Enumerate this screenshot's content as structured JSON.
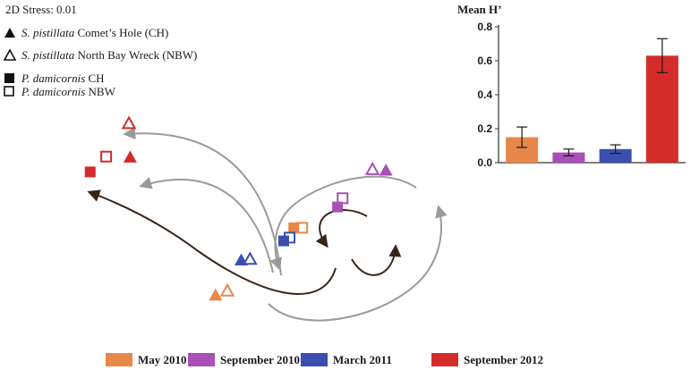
{
  "stress_label": "2D Stress: 0.01",
  "symbol_key": [
    {
      "marker": "triangle-filled",
      "species": "S. pistillata",
      "site": "Comet’s Hole (CH)"
    },
    {
      "marker": "triangle-open",
      "species": "S. pistillata",
      "site": "North Bay Wreck (NBW)"
    },
    {
      "marker": "square-filled",
      "species": "P. damicornis",
      "site": "CH"
    },
    {
      "marker": "square-open",
      "species": "P. damicornis",
      "site": "NBW"
    }
  ],
  "chart_data": [
    {
      "type": "scatter",
      "description_of_markers": "nMDS ordination points grouped by sampling date",
      "xlim": [
        0,
        100
      ],
      "ylim": [
        0,
        100
      ],
      "points": [
        {
          "x": 20.0,
          "y": 94.5,
          "marker": "triangle-open",
          "date": "September 2012"
        },
        {
          "x": 14.6,
          "y": 79.5,
          "marker": "square-open",
          "date": "September 2012"
        },
        {
          "x": 20.3,
          "y": 79.0,
          "marker": "triangle-filled",
          "date": "September 2012"
        },
        {
          "x": 10.8,
          "y": 72.5,
          "marker": "square-filled",
          "date": "September 2012"
        },
        {
          "x": 77.9,
          "y": 73.5,
          "marker": "triangle-open",
          "date": "September 2010"
        },
        {
          "x": 81.1,
          "y": 73.0,
          "marker": "triangle-filled",
          "date": "September 2010"
        },
        {
          "x": 70.8,
          "y": 60.5,
          "marker": "square-open",
          "date": "September 2010"
        },
        {
          "x": 69.6,
          "y": 56.5,
          "marker": "square-filled",
          "date": "September 2010"
        },
        {
          "x": 61.2,
          "y": 47.0,
          "marker": "square-open",
          "date": "May 2010"
        },
        {
          "x": 59.2,
          "y": 47.0,
          "marker": "square-filled",
          "date": "May 2010"
        },
        {
          "x": 58.2,
          "y": 42.5,
          "marker": "square-open",
          "date": "March 2011"
        },
        {
          "x": 56.8,
          "y": 41.0,
          "marker": "square-filled",
          "date": "March 2011"
        },
        {
          "x": 46.7,
          "y": 32.0,
          "marker": "triangle-filled",
          "date": "March 2011"
        },
        {
          "x": 48.8,
          "y": 32.5,
          "marker": "triangle-open",
          "date": "March 2011"
        },
        {
          "x": 40.6,
          "y": 16.0,
          "marker": "triangle-filled",
          "date": "May 2010"
        },
        {
          "x": 43.4,
          "y": 18.0,
          "marker": "triangle-open",
          "date": "May 2010"
        }
      ],
      "trajectories": [
        {
          "from": "March 2011",
          "to": "September 2012",
          "group": "S. pistillata NBW",
          "color": "#9a9a9a"
        },
        {
          "from": "March 2011",
          "to": "September 2012",
          "group": "S. pistillata CH",
          "color": "#9a9a9a"
        },
        {
          "from": "March 2011",
          "to": "September 2012",
          "group": "P. damicornis CH",
          "color": "#3a2418"
        },
        {
          "from": "September 2012",
          "to": "March 2011",
          "group": "S. pistillata",
          "color": "#9a9a9a"
        },
        {
          "from": "May 2010",
          "to": "September 2010",
          "group": "S. pistillata",
          "color": "#9a9a9a"
        },
        {
          "from": "May 2010",
          "to": "September 2010",
          "group": "P. damicornis",
          "color": "#3a2418"
        },
        {
          "from": "September 2010",
          "to": "March 2011",
          "group": "P. damicornis",
          "color": "#3a2418"
        }
      ]
    },
    {
      "type": "bar",
      "ylabel": "Mean H’",
      "ylim": [
        0,
        0.8
      ],
      "yticks": [
        0.0,
        0.2,
        0.4,
        0.6,
        0.8
      ],
      "categories": [
        "May 2010",
        "September 2010",
        "March 2011",
        "September 2012"
      ],
      "values": [
        0.15,
        0.06,
        0.08,
        0.63
      ],
      "errors": [
        0.06,
        0.02,
        0.025,
        0.1
      ],
      "colors": [
        "#e8874a",
        "#a94fb8",
        "#3a4fb0",
        "#d42b2b"
      ]
    }
  ],
  "legend": [
    {
      "label": "May 2010",
      "color": "#e8874a"
    },
    {
      "label": "September 2010",
      "color": "#a94fb8"
    },
    {
      "label": "March 2011",
      "color": "#3a4fb0"
    },
    {
      "label": "September 2012",
      "color": "#d42b2b"
    }
  ]
}
